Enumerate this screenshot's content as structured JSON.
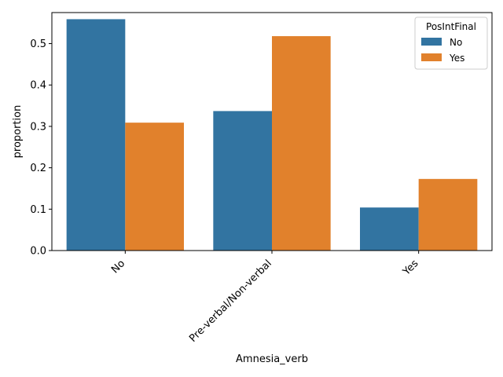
{
  "chart_data": {
    "type": "bar",
    "categories": [
      "No",
      "Pre-verbal/Non-verbal",
      "Yes"
    ],
    "series": [
      {
        "name": "No",
        "color": "#3274a1",
        "values": [
          0.559,
          0.337,
          0.104
        ]
      },
      {
        "name": "Yes",
        "color": "#e1812c",
        "values": [
          0.309,
          0.518,
          0.173
        ]
      }
    ],
    "xlabel": "Amnesia_verb",
    "ylabel": "proportion",
    "ylim": [
      0,
      0.575
    ],
    "yticks": [
      0.0,
      0.1,
      0.2,
      0.3,
      0.4,
      0.5
    ],
    "ytick_labels": [
      "0.0",
      "0.1",
      "0.2",
      "0.3",
      "0.4",
      "0.5"
    ],
    "grid": false,
    "legend": {
      "title": "PosIntFinal",
      "placement": "top-right"
    }
  }
}
